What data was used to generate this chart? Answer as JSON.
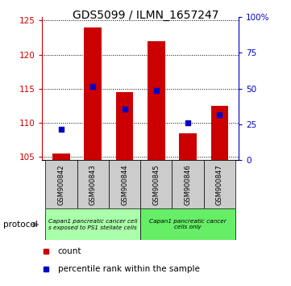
{
  "title": "GDS5099 / ILMN_1657247",
  "samples": [
    "GSM900842",
    "GSM900843",
    "GSM900844",
    "GSM900845",
    "GSM900846",
    "GSM900847"
  ],
  "count_values": [
    105.5,
    124.0,
    114.5,
    122.0,
    108.5,
    112.5
  ],
  "percentile_values": [
    109.0,
    115.3,
    112.0,
    114.7,
    110.0,
    111.2
  ],
  "ylim_left": [
    104.5,
    125.5
  ],
  "ylim_right": [
    0,
    100
  ],
  "yticks_left": [
    105,
    110,
    115,
    120,
    125
  ],
  "yticks_right": [
    0,
    25,
    50,
    75,
    100
  ],
  "bar_bottom": 104.5,
  "bar_color": "#cc0000",
  "percentile_color": "#0000cc",
  "bar_width": 0.55,
  "legend_count_color": "#cc0000",
  "legend_pct_color": "#0000cc",
  "title_fontsize": 10,
  "axis_label_color_left": "#cc0000",
  "axis_label_color_right": "#0000cc",
  "proto_label1": "Capan1 pancreatic cancer cell\ns exposed to PS1 stellate cells",
  "proto_label2": "Capan1 pancreatic cancer\ncells only",
  "proto_color1": "#aaffaa",
  "proto_color2": "#66ee66",
  "sample_box_color": "#cccccc"
}
